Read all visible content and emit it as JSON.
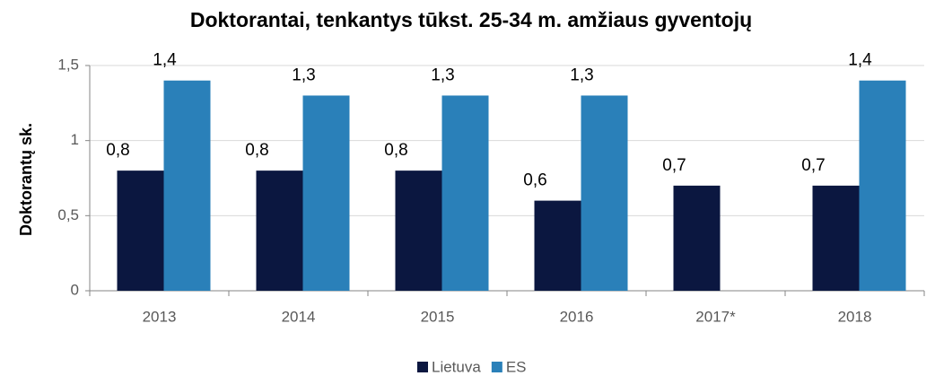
{
  "chart_data": {
    "type": "bar",
    "title": "Doktorantai, tenkantys tūkst. 25-34 m. amžiaus gyventojų",
    "y_label": "Doktorantų sk.",
    "categories": [
      "2013",
      "2014",
      "2015",
      "2016",
      "2017*",
      "2018"
    ],
    "series": [
      {
        "name": "Lietuva",
        "color": "#0b1740",
        "values": [
          0.8,
          0.8,
          0.8,
          0.6,
          0.7,
          0.7
        ],
        "value_labels": [
          "0,8",
          "0,8",
          "0,8",
          "0,6",
          "0,7",
          "0,7"
        ]
      },
      {
        "name": "ES",
        "color": "#2a80b9",
        "values": [
          1.4,
          1.3,
          1.3,
          1.3,
          null,
          1.4
        ],
        "value_labels": [
          "1,4",
          "1,3",
          "1,3",
          "1,3",
          null,
          "1,4"
        ]
      }
    ],
    "ylim": [
      0,
      1.5
    ],
    "yticks": [
      0,
      {
        "value": 0.5,
        "label": "0,5"
      },
      1,
      {
        "value": 1.5,
        "label": "1,5"
      }
    ],
    "grid": true,
    "legend": "bottom"
  }
}
